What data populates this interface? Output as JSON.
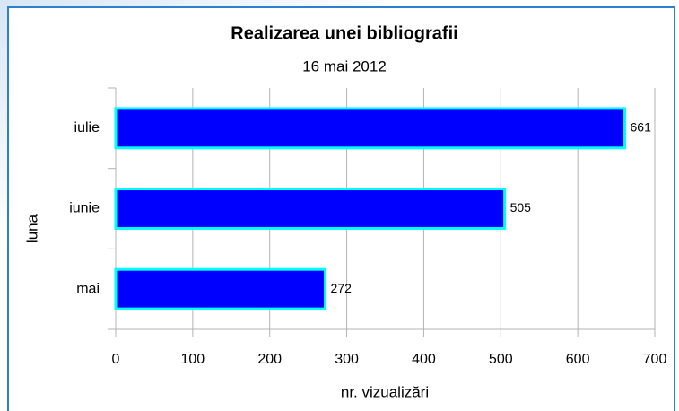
{
  "chart_data": {
    "type": "bar",
    "orientation": "horizontal",
    "title": "Realizarea unei bibliografii",
    "subtitle": "16 mai 2012",
    "x_label": "nr. vizualizări",
    "y_label": "luna",
    "categories": [
      "mai",
      "iunie",
      "iulie"
    ],
    "values": [
      272,
      505,
      661
    ],
    "color": "#0000ff",
    "edge_color": "#00ffff",
    "xlim": [
      0,
      700
    ],
    "xticks": [
      0,
      100,
      200,
      300,
      400,
      500,
      600,
      700
    ],
    "grid": true
  }
}
